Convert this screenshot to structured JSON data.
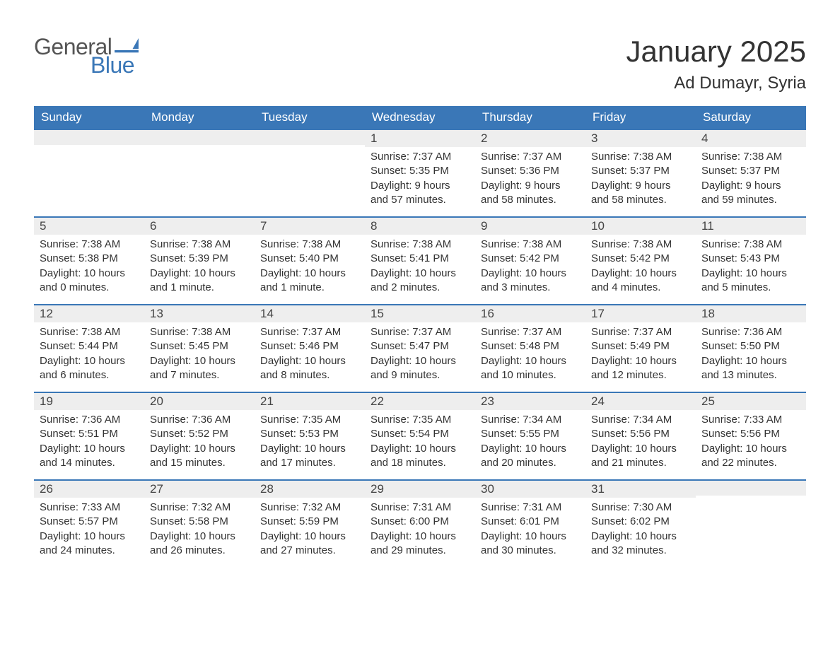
{
  "logo": {
    "text_top": "General",
    "text_bottom": "Blue",
    "flag_color": "#3a77b7"
  },
  "title": "January 2025",
  "location": "Ad Dumayr, Syria",
  "colors": {
    "header_bg": "#3a77b7",
    "header_text": "#ffffff",
    "daynum_bg": "#eeeeee",
    "daynum_border_top": "#3a77b7",
    "body_text": "#333333",
    "logo_gray": "#555555",
    "logo_blue": "#3a77b7",
    "page_bg": "#ffffff"
  },
  "typography": {
    "title_fontsize_pt": 32,
    "location_fontsize_pt": 18,
    "weekday_fontsize_pt": 13,
    "daynum_fontsize_pt": 13,
    "body_fontsize_pt": 11
  },
  "weekdays": [
    "Sunday",
    "Monday",
    "Tuesday",
    "Wednesday",
    "Thursday",
    "Friday",
    "Saturday"
  ],
  "label_sunrise": "Sunrise",
  "label_sunset": "Sunset",
  "label_daylight": "Daylight",
  "weeks": [
    [
      null,
      null,
      null,
      {
        "num": "1",
        "sunrise": "7:37 AM",
        "sunset": "5:35 PM",
        "daylight": "9 hours and 57 minutes."
      },
      {
        "num": "2",
        "sunrise": "7:37 AM",
        "sunset": "5:36 PM",
        "daylight": "9 hours and 58 minutes."
      },
      {
        "num": "3",
        "sunrise": "7:38 AM",
        "sunset": "5:37 PM",
        "daylight": "9 hours and 58 minutes."
      },
      {
        "num": "4",
        "sunrise": "7:38 AM",
        "sunset": "5:37 PM",
        "daylight": "9 hours and 59 minutes."
      }
    ],
    [
      {
        "num": "5",
        "sunrise": "7:38 AM",
        "sunset": "5:38 PM",
        "daylight": "10 hours and 0 minutes."
      },
      {
        "num": "6",
        "sunrise": "7:38 AM",
        "sunset": "5:39 PM",
        "daylight": "10 hours and 1 minute."
      },
      {
        "num": "7",
        "sunrise": "7:38 AM",
        "sunset": "5:40 PM",
        "daylight": "10 hours and 1 minute."
      },
      {
        "num": "8",
        "sunrise": "7:38 AM",
        "sunset": "5:41 PM",
        "daylight": "10 hours and 2 minutes."
      },
      {
        "num": "9",
        "sunrise": "7:38 AM",
        "sunset": "5:42 PM",
        "daylight": "10 hours and 3 minutes."
      },
      {
        "num": "10",
        "sunrise": "7:38 AM",
        "sunset": "5:42 PM",
        "daylight": "10 hours and 4 minutes."
      },
      {
        "num": "11",
        "sunrise": "7:38 AM",
        "sunset": "5:43 PM",
        "daylight": "10 hours and 5 minutes."
      }
    ],
    [
      {
        "num": "12",
        "sunrise": "7:38 AM",
        "sunset": "5:44 PM",
        "daylight": "10 hours and 6 minutes."
      },
      {
        "num": "13",
        "sunrise": "7:38 AM",
        "sunset": "5:45 PM",
        "daylight": "10 hours and 7 minutes."
      },
      {
        "num": "14",
        "sunrise": "7:37 AM",
        "sunset": "5:46 PM",
        "daylight": "10 hours and 8 minutes."
      },
      {
        "num": "15",
        "sunrise": "7:37 AM",
        "sunset": "5:47 PM",
        "daylight": "10 hours and 9 minutes."
      },
      {
        "num": "16",
        "sunrise": "7:37 AM",
        "sunset": "5:48 PM",
        "daylight": "10 hours and 10 minutes."
      },
      {
        "num": "17",
        "sunrise": "7:37 AM",
        "sunset": "5:49 PM",
        "daylight": "10 hours and 12 minutes."
      },
      {
        "num": "18",
        "sunrise": "7:36 AM",
        "sunset": "5:50 PM",
        "daylight": "10 hours and 13 minutes."
      }
    ],
    [
      {
        "num": "19",
        "sunrise": "7:36 AM",
        "sunset": "5:51 PM",
        "daylight": "10 hours and 14 minutes."
      },
      {
        "num": "20",
        "sunrise": "7:36 AM",
        "sunset": "5:52 PM",
        "daylight": "10 hours and 15 minutes."
      },
      {
        "num": "21",
        "sunrise": "7:35 AM",
        "sunset": "5:53 PM",
        "daylight": "10 hours and 17 minutes."
      },
      {
        "num": "22",
        "sunrise": "7:35 AM",
        "sunset": "5:54 PM",
        "daylight": "10 hours and 18 minutes."
      },
      {
        "num": "23",
        "sunrise": "7:34 AM",
        "sunset": "5:55 PM",
        "daylight": "10 hours and 20 minutes."
      },
      {
        "num": "24",
        "sunrise": "7:34 AM",
        "sunset": "5:56 PM",
        "daylight": "10 hours and 21 minutes."
      },
      {
        "num": "25",
        "sunrise": "7:33 AM",
        "sunset": "5:56 PM",
        "daylight": "10 hours and 22 minutes."
      }
    ],
    [
      {
        "num": "26",
        "sunrise": "7:33 AM",
        "sunset": "5:57 PM",
        "daylight": "10 hours and 24 minutes."
      },
      {
        "num": "27",
        "sunrise": "7:32 AM",
        "sunset": "5:58 PM",
        "daylight": "10 hours and 26 minutes."
      },
      {
        "num": "28",
        "sunrise": "7:32 AM",
        "sunset": "5:59 PM",
        "daylight": "10 hours and 27 minutes."
      },
      {
        "num": "29",
        "sunrise": "7:31 AM",
        "sunset": "6:00 PM",
        "daylight": "10 hours and 29 minutes."
      },
      {
        "num": "30",
        "sunrise": "7:31 AM",
        "sunset": "6:01 PM",
        "daylight": "10 hours and 30 minutes."
      },
      {
        "num": "31",
        "sunrise": "7:30 AM",
        "sunset": "6:02 PM",
        "daylight": "10 hours and 32 minutes."
      },
      null
    ]
  ]
}
